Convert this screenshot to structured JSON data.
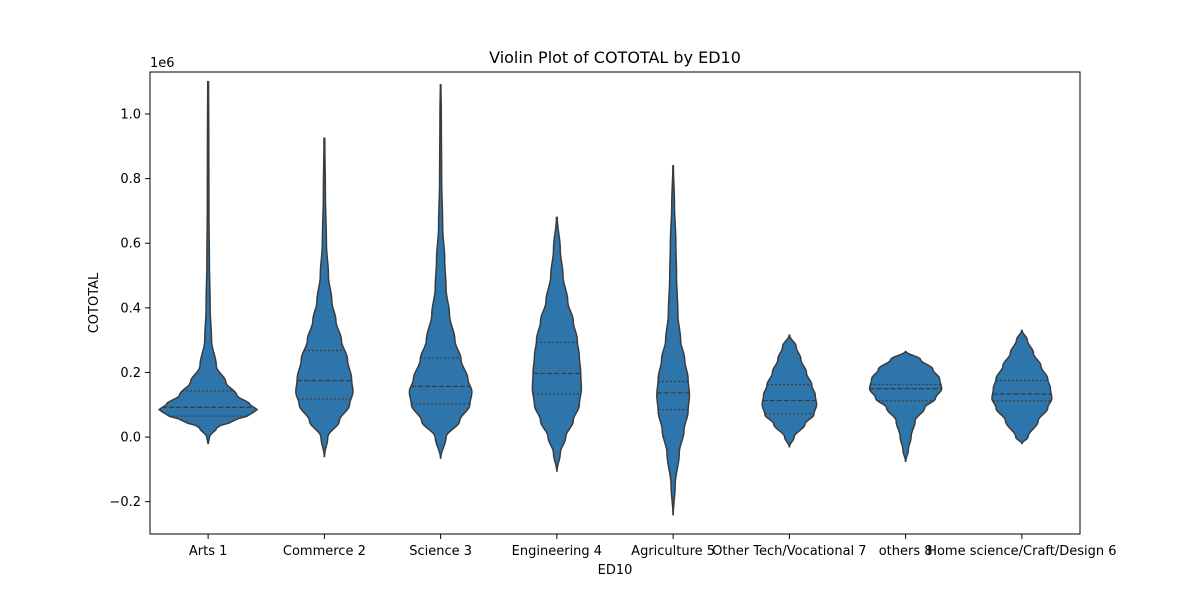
{
  "chart_data": {
    "type": "violin",
    "title": "Violin Plot of COTOTAL by ED10",
    "xlabel": "ED10",
    "ylabel": "COTOTAL",
    "y_scale_label": "1e6",
    "ylim": [
      -0.3,
      1.13
    ],
    "yticks": [
      -0.2,
      0.0,
      0.2,
      0.4,
      0.6,
      0.8,
      1.0
    ],
    "ytick_labels": [
      "−0.2",
      "0.0",
      "0.2",
      "0.4",
      "0.6",
      "0.8",
      "1.0"
    ],
    "grid": false,
    "colors": {
      "fill": "#2e75ac",
      "edge": "#3b3b3b",
      "quartile": "#3b3b3b"
    },
    "categories": [
      "Arts 1",
      "Commerce 2",
      "Science 3",
      "Engineering 4",
      "Agriculture 5",
      "Other Tech/Vocational 7",
      "others 8",
      "Home science/Craft/Design 6"
    ],
    "violins": [
      {
        "min": -0.02,
        "max": 1.1,
        "q1": 0.065,
        "median": 0.092,
        "q3": 0.143,
        "profile": [
          [
            -0.02,
            0.002
          ],
          [
            0.0,
            0.02
          ],
          [
            0.03,
            0.13
          ],
          [
            0.05,
            0.37
          ],
          [
            0.07,
            0.62
          ],
          [
            0.085,
            0.72
          ],
          [
            0.1,
            0.62
          ],
          [
            0.13,
            0.42
          ],
          [
            0.17,
            0.26
          ],
          [
            0.22,
            0.12
          ],
          [
            0.3,
            0.05
          ],
          [
            0.4,
            0.03
          ],
          [
            0.55,
            0.018
          ],
          [
            0.7,
            0.012
          ],
          [
            0.9,
            0.01
          ],
          [
            1.1,
            0.006
          ]
        ]
      },
      {
        "min": -0.06,
        "max": 0.925,
        "q1": 0.118,
        "median": 0.175,
        "q3": 0.268,
        "profile": [
          [
            -0.06,
            0.002
          ],
          [
            0.0,
            0.05
          ],
          [
            0.05,
            0.22
          ],
          [
            0.1,
            0.37
          ],
          [
            0.14,
            0.42
          ],
          [
            0.18,
            0.4
          ],
          [
            0.24,
            0.34
          ],
          [
            0.3,
            0.25
          ],
          [
            0.36,
            0.17
          ],
          [
            0.42,
            0.11
          ],
          [
            0.5,
            0.06
          ],
          [
            0.6,
            0.03
          ],
          [
            0.75,
            0.015
          ],
          [
            0.925,
            0.006
          ]
        ]
      },
      {
        "min": -0.065,
        "max": 1.09,
        "q1": 0.103,
        "median": 0.157,
        "q3": 0.245,
        "profile": [
          [
            -0.065,
            0.002
          ],
          [
            0.0,
            0.08
          ],
          [
            0.05,
            0.28
          ],
          [
            0.1,
            0.43
          ],
          [
            0.14,
            0.46
          ],
          [
            0.18,
            0.4
          ],
          [
            0.24,
            0.3
          ],
          [
            0.3,
            0.21
          ],
          [
            0.38,
            0.13
          ],
          [
            0.46,
            0.08
          ],
          [
            0.55,
            0.06
          ],
          [
            0.65,
            0.03
          ],
          [
            0.8,
            0.015
          ],
          [
            1.0,
            0.01
          ],
          [
            1.09,
            0.004
          ]
        ]
      },
      {
        "min": -0.105,
        "max": 0.68,
        "q1": 0.133,
        "median": 0.197,
        "q3": 0.293,
        "profile": [
          [
            -0.105,
            0.002
          ],
          [
            -0.05,
            0.05
          ],
          [
            0.0,
            0.13
          ],
          [
            0.05,
            0.24
          ],
          [
            0.1,
            0.33
          ],
          [
            0.15,
            0.36
          ],
          [
            0.2,
            0.35
          ],
          [
            0.25,
            0.33
          ],
          [
            0.3,
            0.3
          ],
          [
            0.36,
            0.24
          ],
          [
            0.42,
            0.16
          ],
          [
            0.5,
            0.09
          ],
          [
            0.58,
            0.05
          ],
          [
            0.68,
            0.006
          ]
        ]
      },
      {
        "min": -0.24,
        "max": 0.84,
        "q1": 0.085,
        "median": 0.137,
        "q3": 0.172,
        "profile": [
          [
            -0.24,
            0.002
          ],
          [
            -0.15,
            0.03
          ],
          [
            -0.05,
            0.09
          ],
          [
            0.02,
            0.16
          ],
          [
            0.08,
            0.22
          ],
          [
            0.13,
            0.24
          ],
          [
            0.18,
            0.22
          ],
          [
            0.24,
            0.17
          ],
          [
            0.3,
            0.11
          ],
          [
            0.38,
            0.07
          ],
          [
            0.5,
            0.05
          ],
          [
            0.6,
            0.04
          ],
          [
            0.72,
            0.02
          ],
          [
            0.84,
            0.004
          ]
        ]
      },
      {
        "min": -0.03,
        "max": 0.315,
        "q1": 0.072,
        "median": 0.113,
        "q3": 0.162,
        "profile": [
          [
            -0.03,
            0.002
          ],
          [
            0.0,
            0.07
          ],
          [
            0.04,
            0.23
          ],
          [
            0.07,
            0.36
          ],
          [
            0.1,
            0.4
          ],
          [
            0.13,
            0.38
          ],
          [
            0.16,
            0.33
          ],
          [
            0.2,
            0.25
          ],
          [
            0.24,
            0.17
          ],
          [
            0.28,
            0.1
          ],
          [
            0.315,
            0.004
          ]
        ]
      },
      {
        "min": -0.075,
        "max": 0.265,
        "q1": 0.112,
        "median": 0.15,
        "q3": 0.163,
        "profile": [
          [
            -0.075,
            0.002
          ],
          [
            -0.04,
            0.04
          ],
          [
            0.0,
            0.08
          ],
          [
            0.05,
            0.14
          ],
          [
            0.09,
            0.28
          ],
          [
            0.12,
            0.44
          ],
          [
            0.15,
            0.53
          ],
          [
            0.18,
            0.5
          ],
          [
            0.21,
            0.4
          ],
          [
            0.24,
            0.22
          ],
          [
            0.265,
            0.004
          ]
        ]
      },
      {
        "min": -0.02,
        "max": 0.33,
        "q1": 0.112,
        "median": 0.133,
        "q3": 0.175,
        "profile": [
          [
            -0.02,
            0.002
          ],
          [
            0.0,
            0.09
          ],
          [
            0.05,
            0.24
          ],
          [
            0.09,
            0.38
          ],
          [
            0.12,
            0.44
          ],
          [
            0.15,
            0.42
          ],
          [
            0.18,
            0.38
          ],
          [
            0.22,
            0.28
          ],
          [
            0.26,
            0.17
          ],
          [
            0.3,
            0.08
          ],
          [
            0.33,
            0.004
          ]
        ]
      }
    ]
  }
}
